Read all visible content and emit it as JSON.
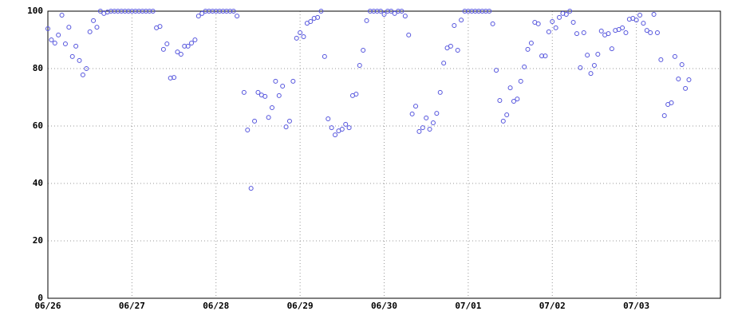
{
  "chart_data": {
    "type": "scatter",
    "color": "#5555dd",
    "grid": true,
    "x": [
      0,
      1,
      2,
      3,
      4,
      5,
      6,
      7,
      8,
      9,
      10,
      11,
      12,
      13,
      14,
      15,
      16,
      17,
      18,
      19,
      20,
      21,
      22,
      23,
      24,
      25,
      26,
      27,
      28,
      29,
      30,
      31,
      32,
      33,
      34,
      35,
      36,
      37,
      38,
      39,
      40,
      41,
      42,
      43,
      44,
      45,
      46,
      47,
      48,
      49,
      50,
      51,
      52,
      53,
      54,
      56,
      57,
      58,
      59,
      60,
      61,
      62,
      63,
      64,
      65,
      66,
      67,
      68,
      69,
      70,
      71,
      72,
      73,
      74,
      75,
      76,
      77,
      78,
      79,
      80,
      81,
      82,
      83,
      84,
      85,
      86,
      87,
      88,
      89,
      90,
      91,
      92,
      93,
      94,
      95,
      96,
      97,
      98,
      99,
      100,
      101,
      102,
      103,
      104,
      105,
      106,
      107,
      108,
      109,
      110,
      111,
      112,
      113,
      114,
      115,
      116,
      117,
      118,
      119,
      120,
      121,
      122,
      123,
      124,
      125,
      126,
      127,
      128,
      129,
      130,
      131,
      132,
      133,
      134,
      135,
      136,
      137,
      138,
      139,
      140,
      141,
      142,
      143,
      144,
      145,
      146,
      147,
      148,
      149,
      150,
      151,
      152,
      153,
      154,
      155,
      156,
      157,
      158,
      159,
      160,
      161,
      162,
      163,
      164,
      165,
      166,
      167,
      168,
      169,
      170,
      171,
      172,
      173,
      174,
      175,
      176,
      177,
      178,
      179,
      180,
      181,
      182,
      183
    ],
    "values": [
      93.9,
      90,
      88.9,
      91.7,
      98.6,
      88.6,
      94.4,
      84.2,
      87.8,
      82.8,
      77.8,
      80,
      92.8,
      96.7,
      94.4,
      100,
      99.2,
      99.7,
      100,
      100,
      100,
      100,
      100,
      100,
      100,
      100,
      100,
      100,
      100,
      100,
      100,
      94.2,
      94.7,
      86.7,
      88.6,
      76.7,
      76.9,
      85.8,
      85,
      87.8,
      87.8,
      88.9,
      90,
      98.3,
      99.2,
      100,
      100,
      100,
      100,
      100,
      100,
      100,
      100,
      100,
      98.3,
      71.7,
      58.6,
      38.3,
      61.7,
      71.7,
      70.8,
      70.3,
      63,
      66.4,
      75.6,
      70.6,
      73.9,
      59.7,
      61.7,
      75.6,
      90.6,
      92.5,
      91.1,
      95.8,
      96.4,
      97.5,
      97.8,
      100,
      84.2,
      62.5,
      59.4,
      56.9,
      58.3,
      58.9,
      60.6,
      59.4,
      70.6,
      71.1,
      81.1,
      86.4,
      96.7,
      100,
      100,
      100,
      100,
      98.9,
      100,
      100,
      99.2,
      100,
      100,
      98.3,
      91.7,
      64.2,
      66.9,
      58.1,
      59.4,
      62.8,
      58.9,
      61.1,
      64.4,
      71.7,
      81.9,
      87.2,
      87.8,
      95,
      86.4,
      96.9,
      100,
      100,
      100,
      100,
      100,
      100,
      100,
      100,
      95.6,
      79.4,
      68.9,
      61.7,
      63.9,
      73.3,
      68.6,
      69.4,
      75.6,
      80.6,
      86.7,
      88.9,
      96.1,
      95.6,
      84.4,
      84.4,
      92.8,
      96.4,
      94.2,
      97.8,
      99.2,
      98.9,
      100,
      96.1,
      92.2,
      80.3,
      92.5,
      84.7,
      78.3,
      81.1,
      85,
      93.1,
      91.7,
      92.2,
      86.9,
      93.3,
      93.6,
      94.2,
      92.5,
      97.2,
      97.5,
      96.9,
      98.6,
      95.8,
      93.3,
      92.5,
      98.9,
      92.5,
      83.1,
      63.6,
      67.5,
      68.1,
      84.2,
      76.4,
      81.4,
      73.1,
      76.1
    ],
    "xlim": [
      0,
      192
    ],
    "xticks": [
      {
        "value": 0,
        "label": "06/26"
      },
      {
        "value": 24,
        "label": "06/27"
      },
      {
        "value": 48,
        "label": "06/28"
      },
      {
        "value": 72,
        "label": "06/29"
      },
      {
        "value": 96,
        "label": "06/30"
      },
      {
        "value": 120,
        "label": "07/01"
      },
      {
        "value": 144,
        "label": "07/02"
      },
      {
        "value": 168,
        "label": "07/03"
      }
    ],
    "ylim": [
      0,
      100
    ],
    "yticks": [
      0,
      20,
      40,
      60,
      80,
      100
    ]
  }
}
